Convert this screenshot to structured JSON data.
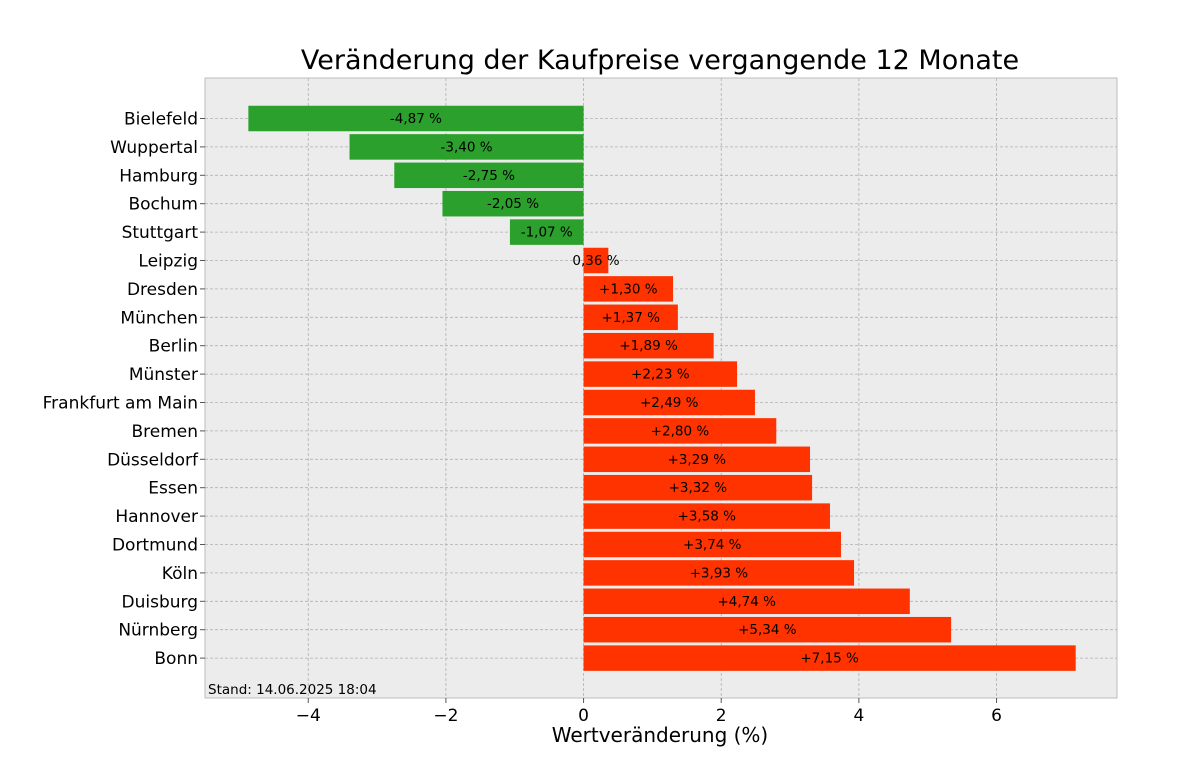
{
  "chart_data": {
    "type": "bar",
    "orientation": "horizontal",
    "title": "Veränderung der Kaufpreise vergangende 12 Monate",
    "xlabel": "Wertveränderung (%)",
    "ylabel": "",
    "xlim": [
      -5.5,
      7.75
    ],
    "xticks": [
      -4,
      -2,
      0,
      2,
      4,
      6
    ],
    "xtick_labels": [
      "−4",
      "−2",
      "0",
      "2",
      "4",
      "6"
    ],
    "grid": true,
    "categories": [
      "Bielefeld",
      "Wuppertal",
      "Hamburg",
      "Bochum",
      "Stuttgart",
      "Leipzig",
      "Dresden",
      "München",
      "Berlin",
      "Münster",
      "Frankfurt am Main",
      "Bremen",
      "Düsseldorf",
      "Essen",
      "Hannover",
      "Dortmund",
      "Köln",
      "Duisburg",
      "Nürnberg",
      "Bonn"
    ],
    "values": [
      -4.87,
      -3.4,
      -2.75,
      -2.05,
      -1.07,
      0.36,
      1.3,
      1.37,
      1.89,
      2.23,
      2.49,
      2.8,
      3.29,
      3.32,
      3.58,
      3.74,
      3.93,
      4.74,
      5.34,
      7.15
    ],
    "data_labels": [
      "-4,87 %",
      "-3,40 %",
      "-2,75 %",
      "-2,05 %",
      "-1,07 %",
      "0,36 %",
      "+1,30 %",
      "+1,37 %",
      "+1,89 %",
      "+2,23 %",
      "+2,49 %",
      "+2,80 %",
      "+3,29 %",
      "+3,32 %",
      "+3,58 %",
      "+3,74 %",
      "+3,93 %",
      "+4,74 %",
      "+5,34 %",
      "+7,15 %"
    ],
    "colors": {
      "negative": "#2ca02c",
      "positive": "#ff3300"
    },
    "annotation": "Stand: 14.06.2025 18:04"
  }
}
